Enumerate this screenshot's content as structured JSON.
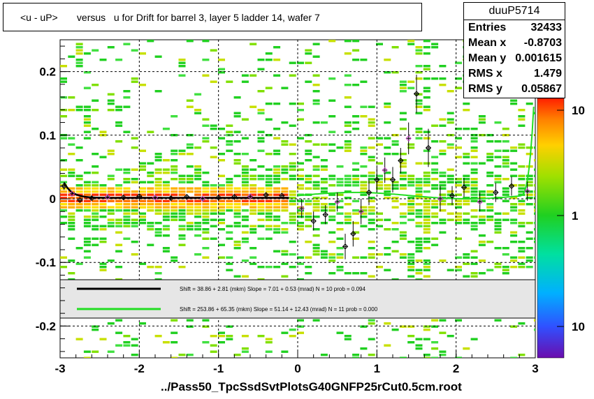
{
  "title": "<u - uP>       versus   u for Drift for barrel 3, layer 5 ladder 14, wafer 7",
  "footer": "../Pass50_TpcSsdSvtPlotsG40GNFP25rCut0.5cm.root",
  "stats": {
    "name": "duuP5714",
    "rows": [
      {
        "key": "Entries",
        "value": "32433"
      },
      {
        "key": "Mean x",
        "value": "-0.8703"
      },
      {
        "key": "Mean y",
        "value": "0.001615"
      },
      {
        "key": "RMS x",
        "value": "1.479"
      },
      {
        "key": "RMS y",
        "value": "0.05867"
      }
    ]
  },
  "legend": [
    {
      "text": "Shift =    38.86 + 2.81 (mkm) Slope =     7.01 + 0.53 (mrad)  N = 10 prob = 0.094",
      "color": "#000000"
    },
    {
      "text": "Shift =    253.86 + 65.35 (mkm) Slope =     51.14 + 12.43 (mrad)  N = 11 prob = 0.000",
      "color": "#22dd22"
    }
  ],
  "colorbar": {
    "labels": [
      "10",
      "1",
      "10"
    ]
  },
  "chart_data": {
    "type": "heatmap",
    "title": "<u - uP>       versus   u for Drift for barrel 3, layer 5 ladder 14, wafer 7",
    "xlim": [
      -3,
      3
    ],
    "ylim": [
      -0.25,
      0.25
    ],
    "x_ticks": [
      "-3",
      "-2",
      "-1",
      "0",
      "1",
      "2",
      "3"
    ],
    "y_ticks": [
      "-0.2",
      "-0.1",
      "0",
      "0.1",
      "0.2"
    ],
    "grid": true,
    "profile_points": [
      {
        "x": -2.95,
        "y": 0.02,
        "e": 0.006
      },
      {
        "x": -2.85,
        "y": 0.008,
        "e": 0.004
      },
      {
        "x": -2.75,
        "y": -0.002,
        "e": 0.004
      },
      {
        "x": -2.6,
        "y": 0.001,
        "e": 0.003
      },
      {
        "x": -2.4,
        "y": 0.003,
        "e": 0.003
      },
      {
        "x": -2.2,
        "y": 0.002,
        "e": 0.003
      },
      {
        "x": -2.0,
        "y": 0.004,
        "e": 0.003
      },
      {
        "x": -1.8,
        "y": 0.002,
        "e": 0.003
      },
      {
        "x": -1.6,
        "y": 0.001,
        "e": 0.003
      },
      {
        "x": -1.4,
        "y": 0.003,
        "e": 0.003
      },
      {
        "x": -1.2,
        "y": 0.0,
        "e": 0.003
      },
      {
        "x": -1.0,
        "y": 0.002,
        "e": 0.003
      },
      {
        "x": -0.8,
        "y": 0.003,
        "e": 0.003
      },
      {
        "x": -0.6,
        "y": 0.004,
        "e": 0.003
      },
      {
        "x": -0.4,
        "y": 0.006,
        "e": 0.003
      },
      {
        "x": -0.2,
        "y": 0.005,
        "e": 0.003
      },
      {
        "x": 0.05,
        "y": -0.015,
        "e": 0.015
      },
      {
        "x": 0.2,
        "y": -0.035,
        "e": 0.015
      },
      {
        "x": 0.35,
        "y": -0.025,
        "e": 0.015
      },
      {
        "x": 0.5,
        "y": -0.005,
        "e": 0.015
      },
      {
        "x": 0.6,
        "y": -0.075,
        "e": 0.02
      },
      {
        "x": 0.7,
        "y": -0.055,
        "e": 0.02
      },
      {
        "x": 0.8,
        "y": -0.02,
        "e": 0.02
      },
      {
        "x": 0.9,
        "y": 0.01,
        "e": 0.02
      },
      {
        "x": 1.0,
        "y": 0.03,
        "e": 0.02
      },
      {
        "x": 1.1,
        "y": 0.045,
        "e": 0.02
      },
      {
        "x": 1.2,
        "y": 0.03,
        "e": 0.02
      },
      {
        "x": 1.3,
        "y": 0.06,
        "e": 0.02
      },
      {
        "x": 1.4,
        "y": 0.095,
        "e": 0.025
      },
      {
        "x": 1.5,
        "y": 0.165,
        "e": 0.03
      },
      {
        "x": 1.65,
        "y": 0.08,
        "e": 0.03
      },
      {
        "x": 1.8,
        "y": 0.0,
        "e": 0.02
      },
      {
        "x": 1.95,
        "y": 0.005,
        "e": 0.015
      },
      {
        "x": 2.1,
        "y": 0.018,
        "e": 0.015
      },
      {
        "x": 2.3,
        "y": -0.005,
        "e": 0.015
      },
      {
        "x": 2.5,
        "y": 0.01,
        "e": 0.015
      },
      {
        "x": 2.7,
        "y": 0.02,
        "e": 0.015
      },
      {
        "x": 2.9,
        "y": 0.012,
        "e": 0.015
      }
    ],
    "fit_black": {
      "x": [
        -2.95,
        -0.1
      ],
      "shift_mkm": 38.86,
      "slope_mrad": 7.01
    },
    "fit_green": {
      "x": [
        0.0,
        3.0
      ],
      "shift_mkm": 253.86,
      "slope_mrad": 51.14
    }
  }
}
